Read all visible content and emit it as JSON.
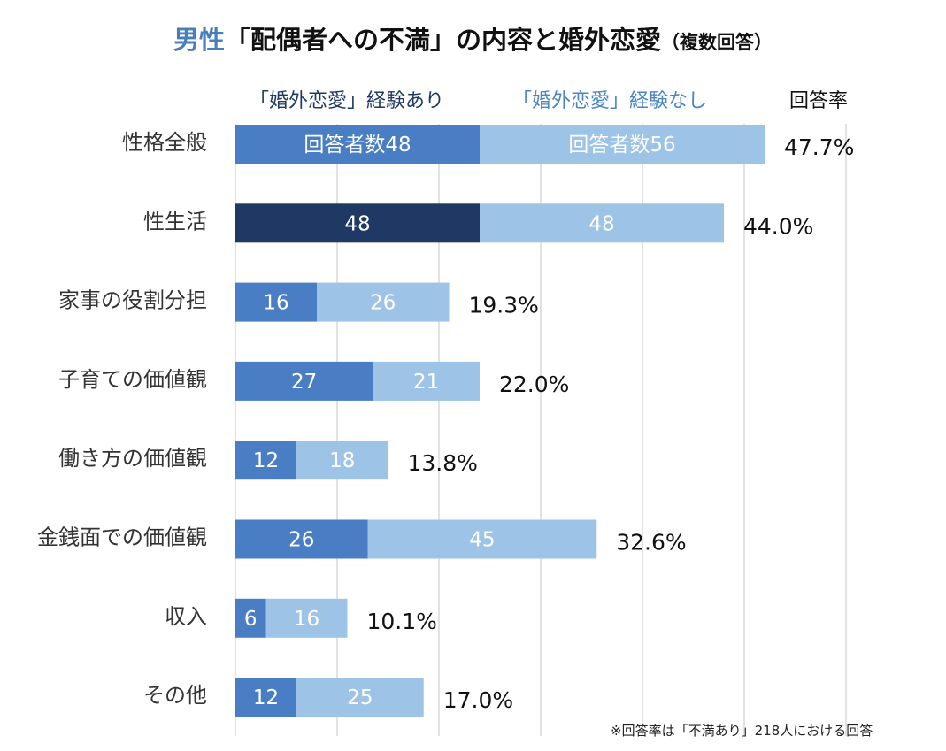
{
  "title": {
    "accent": "男性",
    "main": "「配偶者への不満」の内容と婚外恋愛",
    "suffix": "（複数回答）"
  },
  "legend": {
    "with_affair": "「婚外恋愛」経験あり",
    "without_affair": "「婚外恋愛」経験なし",
    "rate": "回答率"
  },
  "footnote": "※回答率は「不満あり」218人における回答",
  "colors": {
    "with": "#4a7ec4",
    "with_highlight": "#203864",
    "without": "#9dc3e6",
    "gridline": "#d9d9d9",
    "title_accent": "#4a7ebb"
  },
  "chart_data": {
    "type": "bar",
    "orientation": "horizontal",
    "stacked": true,
    "title": "男性「配偶者への不満」の内容と婚外恋愛（複数回答）",
    "categories": [
      "性格全般",
      "性生活",
      "家事の役割分担",
      "子育ての価値観",
      "働き方の価値観",
      "金銭面での価値観",
      "収入",
      "その他"
    ],
    "series": [
      {
        "name": "「婚外恋愛」経験あり",
        "values": [
          48,
          48,
          16,
          27,
          12,
          26,
          6,
          12
        ]
      },
      {
        "name": "「婚外恋愛」経験なし",
        "values": [
          56,
          48,
          26,
          21,
          18,
          45,
          16,
          25
        ]
      }
    ],
    "bar_labels": [
      [
        "回答者数48",
        "回答者数56"
      ],
      [
        "48",
        "48"
      ],
      [
        "16",
        "26"
      ],
      [
        "27",
        "21"
      ],
      [
        "12",
        "18"
      ],
      [
        "26",
        "45"
      ],
      [
        "6",
        "16"
      ],
      [
        "12",
        "25"
      ]
    ],
    "highlight_index": 1,
    "response_rate": [
      "47.7%",
      "44.0%",
      "19.3%",
      "22.0%",
      "13.8%",
      "32.6%",
      "10.1%",
      "17.0%"
    ],
    "xlim": [
      0,
      120
    ],
    "grid": true,
    "legend_position": "top"
  }
}
